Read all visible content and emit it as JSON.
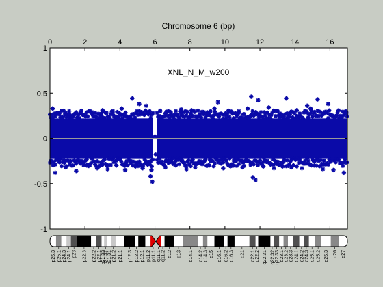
{
  "figure": {
    "background": "#c8ccc4",
    "plot_background": "#ffffff",
    "marker_color": "#0a0aa8",
    "zero_line_color": "#9a9a9a"
  },
  "chart_data": {
    "type": "scatter",
    "title": "Chromosome 6 (bp)",
    "annotation": "XNL_N_M_w200",
    "xlabel": "",
    "ylabel": "",
    "x_axis_position": "top",
    "xlim": [
      0,
      17
    ],
    "ylim": [
      -1,
      1
    ],
    "x_ticks": [
      "0",
      "2",
      "4",
      "6",
      "8",
      "10",
      "12",
      "14",
      "16"
    ],
    "y_ticks": [
      "1",
      "0.5",
      "0",
      "-0.5",
      "-1"
    ],
    "grid": false,
    "legend": "none",
    "series": [
      {
        "marker": "asterisk",
        "band": {
          "x_range": [
            0,
            17
          ],
          "y_low": -0.22,
          "y_high": 0.22,
          "gap_x": [
            5.9,
            6.1
          ]
        },
        "points": [
          [
            0.15,
            0.33
          ],
          [
            0.3,
            -0.38
          ],
          [
            0.5,
            0.28
          ],
          [
            0.9,
            -0.32
          ],
          [
            1.1,
            0.3
          ],
          [
            1.5,
            -0.36
          ],
          [
            1.8,
            0.27
          ],
          [
            2.1,
            -0.3
          ],
          [
            2.4,
            0.29
          ],
          [
            2.7,
            -0.33
          ],
          [
            3.0,
            0.31
          ],
          [
            3.3,
            -0.34
          ],
          [
            3.6,
            0.3
          ],
          [
            3.8,
            -0.3
          ],
          [
            4.1,
            0.33
          ],
          [
            4.3,
            -0.35
          ],
          [
            4.7,
            0.44
          ],
          [
            4.9,
            -0.31
          ],
          [
            5.1,
            0.38
          ],
          [
            5.3,
            -0.33
          ],
          [
            5.5,
            0.36
          ],
          [
            5.75,
            -0.42
          ],
          [
            5.8,
            -0.35
          ],
          [
            5.85,
            -0.48
          ],
          [
            6.0,
            0.02
          ],
          [
            6.05,
            -0.18
          ],
          [
            6.3,
            0.3
          ],
          [
            6.6,
            -0.32
          ],
          [
            6.9,
            0.29
          ],
          [
            7.2,
            -0.3
          ],
          [
            7.5,
            0.32
          ],
          [
            7.8,
            -0.34
          ],
          [
            8.1,
            0.31
          ],
          [
            8.3,
            -0.32
          ],
          [
            8.8,
            0.29
          ],
          [
            9.1,
            -0.3
          ],
          [
            9.4,
            0.33
          ],
          [
            9.6,
            0.4
          ],
          [
            9.9,
            -0.33
          ],
          [
            10.2,
            0.29
          ],
          [
            10.5,
            -0.3
          ],
          [
            10.8,
            0.3
          ],
          [
            11.0,
            -0.32
          ],
          [
            11.3,
            0.33
          ],
          [
            11.5,
            0.46
          ],
          [
            11.6,
            -0.43
          ],
          [
            11.75,
            -0.46
          ],
          [
            11.9,
            0.42
          ],
          [
            12.2,
            -0.31
          ],
          [
            12.5,
            0.34
          ],
          [
            12.8,
            -0.33
          ],
          [
            13.0,
            0.3
          ],
          [
            13.3,
            -0.31
          ],
          [
            13.5,
            0.44
          ],
          [
            13.8,
            -0.32
          ],
          [
            14.1,
            0.31
          ],
          [
            14.4,
            -0.33
          ],
          [
            14.7,
            0.36
          ],
          [
            14.9,
            0.33
          ],
          [
            15.1,
            -0.3
          ],
          [
            15.3,
            0.43
          ],
          [
            15.6,
            -0.34
          ],
          [
            15.9,
            0.38
          ],
          [
            16.2,
            -0.35
          ],
          [
            16.5,
            0.31
          ],
          [
            16.8,
            -0.38
          ],
          [
            16.95,
            0.28
          ]
        ]
      }
    ]
  },
  "ideogram": {
    "centromere_x": 6.05,
    "bands": [
      {
        "label": "p25.3",
        "start": 0.0,
        "end": 0.35,
        "stain": "gneg"
      },
      {
        "label": "p25.1",
        "start": 0.35,
        "end": 0.65,
        "stain": "gpos50"
      },
      {
        "label": "p24.3",
        "start": 0.65,
        "end": 0.95,
        "stain": "gneg"
      },
      {
        "label": "p24.1",
        "start": 0.95,
        "end": 1.2,
        "stain": "gpos25"
      },
      {
        "label": "p23",
        "start": 1.2,
        "end": 1.55,
        "stain": "gpos75"
      },
      {
        "label": "p22.3",
        "start": 1.55,
        "end": 2.35,
        "stain": "gpos100"
      },
      {
        "label": "p22.2",
        "start": 2.35,
        "end": 2.65,
        "stain": "gneg"
      },
      {
        "label": "p22.1",
        "start": 2.65,
        "end": 2.95,
        "stain": "gpos75"
      },
      {
        "label": "p21.33",
        "start": 2.95,
        "end": 3.1,
        "stain": "gneg"
      },
      {
        "label": "p21.32",
        "start": 3.1,
        "end": 3.25,
        "stain": "gpos25"
      },
      {
        "label": "p21.31",
        "start": 3.25,
        "end": 3.5,
        "stain": "gneg"
      },
      {
        "label": "p21.2",
        "start": 3.5,
        "end": 3.75,
        "stain": "gpos25"
      },
      {
        "label": "p21.1",
        "start": 3.75,
        "end": 4.25,
        "stain": "gneg"
      },
      {
        "label": "p12.3",
        "start": 4.25,
        "end": 4.85,
        "stain": "gpos100"
      },
      {
        "label": "p12.2",
        "start": 4.85,
        "end": 5.05,
        "stain": "gneg"
      },
      {
        "label": "p12.1",
        "start": 5.05,
        "end": 5.45,
        "stain": "gpos100"
      },
      {
        "label": "p11.2",
        "start": 5.45,
        "end": 5.75,
        "stain": "gneg"
      },
      {
        "label": "p11.1",
        "start": 5.75,
        "end": 6.05,
        "stain": "acen"
      },
      {
        "label": "q11.1",
        "start": 6.05,
        "end": 6.35,
        "stain": "acen"
      },
      {
        "label": "q11.2",
        "start": 6.35,
        "end": 6.55,
        "stain": "gneg"
      },
      {
        "label": "q12",
        "start": 6.55,
        "end": 7.1,
        "stain": "gpos100"
      },
      {
        "label": "q13",
        "start": 7.1,
        "end": 7.6,
        "stain": "gneg"
      },
      {
        "label": "q14.1",
        "start": 7.6,
        "end": 8.45,
        "stain": "gpos50"
      },
      {
        "label": "q14.2",
        "start": 8.45,
        "end": 8.75,
        "stain": "gneg"
      },
      {
        "label": "q14.3",
        "start": 8.75,
        "end": 9.0,
        "stain": "gpos50"
      },
      {
        "label": "q15",
        "start": 9.0,
        "end": 9.4,
        "stain": "gneg"
      },
      {
        "label": "q16.1",
        "start": 9.4,
        "end": 9.95,
        "stain": "gpos100"
      },
      {
        "label": "q16.2",
        "start": 9.95,
        "end": 10.15,
        "stain": "gneg"
      },
      {
        "label": "q16.3",
        "start": 10.15,
        "end": 10.55,
        "stain": "gpos100"
      },
      {
        "label": "q21",
        "start": 10.55,
        "end": 11.4,
        "stain": "gneg"
      },
      {
        "label": "q22.1",
        "start": 11.4,
        "end": 11.75,
        "stain": "gpos75"
      },
      {
        "label": "q22.2",
        "start": 11.75,
        "end": 11.9,
        "stain": "gneg"
      },
      {
        "label": "q22.31",
        "start": 11.9,
        "end": 12.6,
        "stain": "gpos100"
      },
      {
        "label": "q22.32",
        "start": 12.6,
        "end": 12.8,
        "stain": "gneg"
      },
      {
        "label": "q22.33",
        "start": 12.8,
        "end": 13.1,
        "stain": "gpos75"
      },
      {
        "label": "q23.1",
        "start": 13.1,
        "end": 13.35,
        "stain": "gneg"
      },
      {
        "label": "q23.2",
        "start": 13.35,
        "end": 13.6,
        "stain": "gpos50"
      },
      {
        "label": "q23.3",
        "start": 13.6,
        "end": 13.9,
        "stain": "gneg"
      },
      {
        "label": "q24.1",
        "start": 13.9,
        "end": 14.25,
        "stain": "gpos75"
      },
      {
        "label": "q24.2",
        "start": 14.25,
        "end": 14.5,
        "stain": "gneg"
      },
      {
        "label": "q24.3",
        "start": 14.5,
        "end": 14.8,
        "stain": "gpos75"
      },
      {
        "label": "q25.1",
        "start": 14.8,
        "end": 15.15,
        "stain": "gneg"
      },
      {
        "label": "q25.2",
        "start": 15.15,
        "end": 15.5,
        "stain": "gpos50"
      },
      {
        "label": "q25.3",
        "start": 15.5,
        "end": 16.05,
        "stain": "gneg"
      },
      {
        "label": "q26",
        "start": 16.05,
        "end": 16.5,
        "stain": "gpos50"
      },
      {
        "label": "q27",
        "start": 16.5,
        "end": 17.0,
        "stain": "gneg"
      }
    ],
    "stain_colors": {
      "gneg": "#ffffff",
      "gpos25": "#c8c8c8",
      "gpos50": "#888888",
      "gpos75": "#505050",
      "gpos100": "#000000",
      "acen": "#e00000"
    }
  }
}
